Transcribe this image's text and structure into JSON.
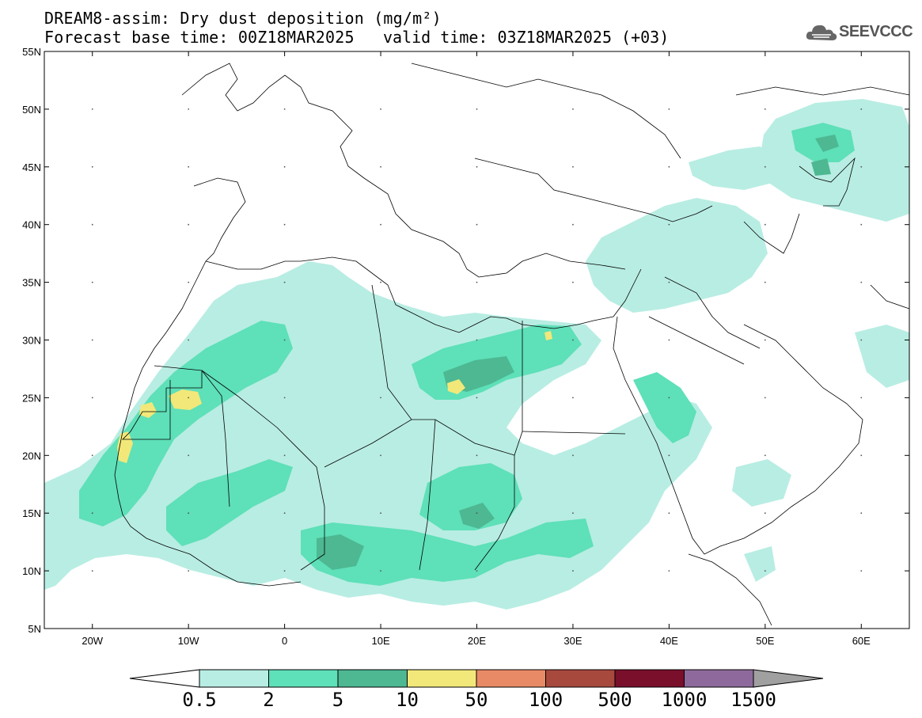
{
  "title": {
    "line1": "DREAM8-assim: Dry dust deposition (mg/m²)",
    "line2": "Forecast base time: 00Z18MAR2025",
    "valid": "valid time: 03Z18MAR2025 (+03)"
  },
  "logo": {
    "text": "SEEVCCC",
    "icon": "cloud-logo-icon"
  },
  "axes": {
    "lon_ticks": [
      "20W",
      "10W",
      "0",
      "10E",
      "20E",
      "30E",
      "40E",
      "50E",
      "60E"
    ],
    "lat_ticks": [
      "55N",
      "50N",
      "45N",
      "40N",
      "35N",
      "30N",
      "25N",
      "20N",
      "15N",
      "10N",
      "5N"
    ],
    "lon_range": [
      -25,
      65
    ],
    "lat_range": [
      5,
      55
    ]
  },
  "colorbar": {
    "labels": [
      "0.5",
      "2",
      "5",
      "10",
      "50",
      "100",
      "500",
      "1000",
      "1500"
    ],
    "colors": [
      "#b8ede3",
      "#5ee0b8",
      "#4db892",
      "#f2e87a",
      "#e88a66",
      "#a8493e",
      "#7a0f2c",
      "#8e6a9c",
      "#a0a0a0"
    ]
  }
}
